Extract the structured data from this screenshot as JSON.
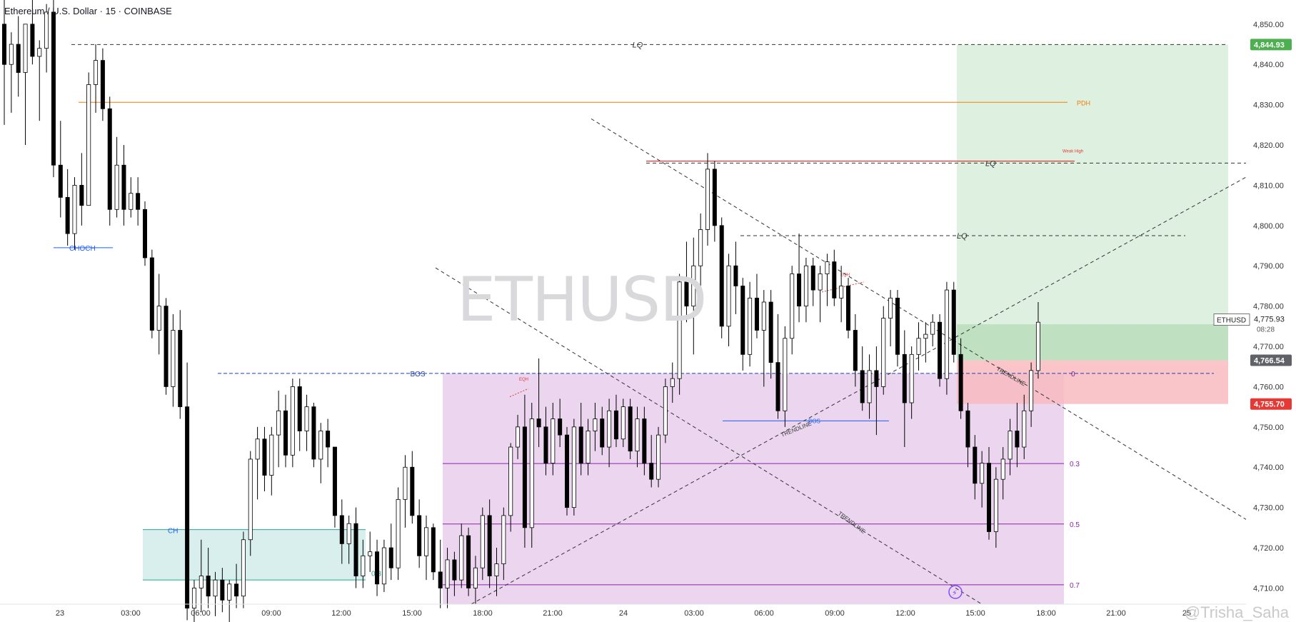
{
  "header": {
    "title": "Ethereum / U.S. Dollar · 15 · COINBASE"
  },
  "watermark": "ETHUSD",
  "credit": "@Trisha_Saha",
  "colors": {
    "up": "#ffffff",
    "down": "#000000",
    "wick": "#000000",
    "tp_zone": "#c8e6c9",
    "sl_zone": "#f8bbc0",
    "fib_zone": "#e1bee7",
    "ch_zone": "#b2dfdb",
    "pdh": "#f57c00",
    "weak_high": "#e53935",
    "bos": "#1e40af",
    "price_green": "#4caf50",
    "price_gray": "#5f6368",
    "price_red": "#e53935"
  },
  "chart_data": {
    "type": "candlestick",
    "symbol": "ETHUSD",
    "interval": "15",
    "exchange": "COINBASE",
    "ylim": [
      4706,
      4856
    ],
    "yticks": [
      4710,
      4720,
      4730,
      4740,
      4750,
      4760,
      4770,
      4780,
      4790,
      4800,
      4810,
      4820,
      4830,
      4840,
      4850
    ],
    "ytick_labels": [
      "4,710.00",
      "4,720.00",
      "4,730.00",
      "4,740.00",
      "4,750.00",
      "4,760.00",
      "4,770.00",
      "4,780.00",
      "4,790.00",
      "4,800.00",
      "4,810.00",
      "4,820.00",
      "4,830.00",
      "4,840.00",
      "4,850.00"
    ],
    "xtick_labels": [
      "23",
      "03:00",
      "06:00",
      "09:00",
      "12:00",
      "15:00",
      "18:00",
      "21:00",
      "24",
      "03:00",
      "06:00",
      "09:00",
      "12:00",
      "15:00",
      "18:00",
      "21:00",
      "25"
    ],
    "candles": [
      [
        4850,
        4856,
        4825,
        4840
      ],
      [
        4840,
        4848,
        4828,
        4845
      ],
      [
        4845,
        4852,
        4832,
        4838
      ],
      [
        4838,
        4850,
        4820,
        4850
      ],
      [
        4850,
        4856,
        4840,
        4842
      ],
      [
        4842,
        4846,
        4826,
        4844
      ],
      [
        4844,
        4855,
        4838,
        4853
      ],
      [
        4853,
        4856,
        4812,
        4815
      ],
      [
        4815,
        4826,
        4802,
        4807
      ],
      [
        4807,
        4814,
        4795,
        4798
      ],
      [
        4798,
        4812,
        4794,
        4810
      ],
      [
        4810,
        4818,
        4800,
        4805
      ],
      [
        4805,
        4838,
        4805,
        4835
      ],
      [
        4835,
        4845,
        4828,
        4841
      ],
      [
        4841,
        4844,
        4826,
        4829
      ],
      [
        4829,
        4832,
        4800,
        4804
      ],
      [
        4804,
        4822,
        4802,
        4815
      ],
      [
        4815,
        4820,
        4800,
        4804
      ],
      [
        4804,
        4812,
        4802,
        4808
      ],
      [
        4808,
        4812,
        4800,
        4804
      ],
      [
        4804,
        4806,
        4790,
        4792
      ],
      [
        4792,
        4794,
        4772,
        4774
      ],
      [
        4774,
        4788,
        4768,
        4780
      ],
      [
        4780,
        4782,
        4758,
        4760
      ],
      [
        4760,
        4778,
        4755,
        4774
      ],
      [
        4774,
        4779,
        4752,
        4755
      ],
      [
        4755,
        4766,
        4702,
        4705
      ],
      [
        4705,
        4712,
        4700,
        4710
      ],
      [
        4710,
        4722,
        4704,
        4713
      ],
      [
        4713,
        4720,
        4705,
        4708
      ],
      [
        4708,
        4714,
        4703,
        4712
      ],
      [
        4712,
        4715,
        4704,
        4707
      ],
      [
        4707,
        4712,
        4700,
        4711
      ],
      [
        4711,
        4716,
        4705,
        4708
      ],
      [
        4708,
        4724,
        4705,
        4722
      ],
      [
        4722,
        4744,
        4718,
        4742
      ],
      [
        4742,
        4750,
        4732,
        4747
      ],
      [
        4747,
        4750,
        4734,
        4738
      ],
      [
        4738,
        4750,
        4733,
        4748
      ],
      [
        4748,
        4759,
        4740,
        4754
      ],
      [
        4754,
        4758,
        4740,
        4743
      ],
      [
        4743,
        4762,
        4740,
        4760
      ],
      [
        4760,
        4762,
        4744,
        4749
      ],
      [
        4749,
        4758,
        4744,
        4755
      ],
      [
        4755,
        4756,
        4740,
        4742
      ],
      [
        4742,
        4751,
        4736,
        4749
      ],
      [
        4749,
        4752,
        4740,
        4745
      ],
      [
        4745,
        4745,
        4725,
        4728
      ],
      [
        4728,
        4732,
        4716,
        4721
      ],
      [
        4721,
        4728,
        4716,
        4726
      ],
      [
        4726,
        4730,
        4710,
        4713
      ],
      [
        4713,
        4722,
        4710,
        4718
      ],
      [
        4718,
        4724,
        4714,
        4719
      ],
      [
        4719,
        4722,
        4708,
        4711
      ],
      [
        4711,
        4722,
        4709,
        4720
      ],
      [
        4720,
        4726,
        4712,
        4715
      ],
      [
        4715,
        4735,
        4712,
        4732
      ],
      [
        4732,
        4743,
        4725,
        4740
      ],
      [
        4740,
        4744,
        4726,
        4728
      ],
      [
        4728,
        4732,
        4715,
        4718
      ],
      [
        4718,
        4728,
        4712,
        4725
      ],
      [
        4725,
        4726,
        4712,
        4714
      ],
      [
        4714,
        4722,
        4705,
        4710
      ],
      [
        4710,
        4720,
        4705,
        4717
      ],
      [
        4717,
        4719,
        4708,
        4712
      ],
      [
        4712,
        4726,
        4710,
        4723
      ],
      [
        4723,
        4725,
        4708,
        4710
      ],
      [
        4710,
        4718,
        4706,
        4715
      ],
      [
        4715,
        4730,
        4712,
        4728
      ],
      [
        4728,
        4732,
        4710,
        4713
      ],
      [
        4713,
        4720,
        4708,
        4716
      ],
      [
        4716,
        4730,
        4712,
        4728
      ],
      [
        4728,
        4746,
        4724,
        4745
      ],
      [
        4745,
        4753,
        4742,
        4750
      ],
      [
        4750,
        4758,
        4720,
        4725
      ],
      [
        4725,
        4756,
        4720,
        4752
      ],
      [
        4752,
        4767,
        4745,
        4750
      ],
      [
        4750,
        4755,
        4738,
        4741
      ],
      [
        4741,
        4756,
        4738,
        4752
      ],
      [
        4752,
        4757,
        4745,
        4748
      ],
      [
        4748,
        4750,
        4728,
        4730
      ],
      [
        4730,
        4752,
        4728,
        4750
      ],
      [
        4750,
        4756,
        4738,
        4741
      ],
      [
        4741,
        4752,
        4738,
        4749
      ],
      [
        4749,
        4756,
        4744,
        4752
      ],
      [
        4752,
        4755,
        4743,
        4745
      ],
      [
        4745,
        4757,
        4740,
        4754
      ],
      [
        4754,
        4758,
        4745,
        4747
      ],
      [
        4747,
        4757,
        4745,
        4755
      ],
      [
        4755,
        4757,
        4742,
        4744
      ],
      [
        4744,
        4755,
        4740,
        4752
      ],
      [
        4752,
        4755,
        4738,
        4741
      ],
      [
        4741,
        4748,
        4735,
        4737
      ],
      [
        4737,
        4750,
        4735,
        4748
      ],
      [
        4748,
        4762,
        4746,
        4760
      ],
      [
        4760,
        4766,
        4756,
        4762
      ],
      [
        4762,
        4788,
        4758,
        4786
      ],
      [
        4786,
        4796,
        4776,
        4780
      ],
      [
        4780,
        4797,
        4768,
        4790
      ],
      [
        4790,
        4803,
        4784,
        4799
      ],
      [
        4799,
        4818,
        4795,
        4814
      ],
      [
        4814,
        4816,
        4796,
        4800
      ],
      [
        4800,
        4802,
        4772,
        4775
      ],
      [
        4775,
        4793,
        4770,
        4790
      ],
      [
        4790,
        4796,
        4778,
        4785
      ],
      [
        4785,
        4787,
        4764,
        4768
      ],
      [
        4768,
        4786,
        4765,
        4782
      ],
      [
        4782,
        4788,
        4772,
        4774
      ],
      [
        4774,
        4784,
        4760,
        4781
      ],
      [
        4781,
        4784,
        4762,
        4766
      ],
      [
        4766,
        4778,
        4752,
        4754
      ],
      [
        4754,
        4775,
        4750,
        4772
      ],
      [
        4772,
        4790,
        4768,
        4788
      ],
      [
        4788,
        4798,
        4776,
        4780
      ],
      [
        4780,
        4792,
        4776,
        4790
      ],
      [
        4790,
        4792,
        4780,
        4784
      ],
      [
        4784,
        4790,
        4776,
        4788
      ],
      [
        4788,
        4793,
        4780,
        4791
      ],
      [
        4791,
        4794,
        4780,
        4782
      ],
      [
        4782,
        4790,
        4776,
        4785
      ],
      [
        4785,
        4787,
        4772,
        4774
      ],
      [
        4774,
        4778,
        4760,
        4764
      ],
      [
        4764,
        4770,
        4754,
        4756
      ],
      [
        4756,
        4768,
        4752,
        4764
      ],
      [
        4764,
        4770,
        4748,
        4760
      ],
      [
        4760,
        4780,
        4758,
        4777
      ],
      [
        4777,
        4784,
        4770,
        4782
      ],
      [
        4782,
        4784,
        4765,
        4768
      ],
      [
        4768,
        4774,
        4745,
        4756
      ],
      [
        4756,
        4770,
        4752,
        4768
      ],
      [
        4768,
        4776,
        4764,
        4772
      ],
      [
        4772,
        4776,
        4766,
        4773
      ],
      [
        4773,
        4778,
        4770,
        4776
      ],
      [
        4776,
        4778,
        4760,
        4762
      ],
      [
        4762,
        4786,
        4758,
        4784
      ],
      [
        4784,
        4786,
        4766,
        4768
      ],
      [
        4768,
        4772,
        4752,
        4754
      ],
      [
        4754,
        4756,
        4740,
        4745
      ],
      [
        4745,
        4748,
        4732,
        4736
      ],
      [
        4736,
        4744,
        4730,
        4741
      ],
      [
        4741,
        4745,
        4722,
        4724
      ],
      [
        4724,
        4740,
        4720,
        4737
      ],
      [
        4737,
        4745,
        4732,
        4742
      ],
      [
        4742,
        4752,
        4738,
        4749
      ],
      [
        4749,
        4756,
        4740,
        4745
      ],
      [
        4745,
        4758,
        4742,
        4754
      ],
      [
        4754,
        4766,
        4750,
        4764
      ],
      [
        4764,
        4781,
        4762,
        4776
      ]
    ],
    "levels": [
      {
        "label": "LQ",
        "value": 4844.93
      },
      {
        "label": "PDH",
        "value": 4830.6
      },
      {
        "label": "Weak High",
        "value": 4816
      },
      {
        "label": "LQ",
        "value": 4815.5
      },
      {
        "label": "LQ",
        "value": 4797.5
      },
      {
        "label": "BOS",
        "value": 4763.3
      },
      {
        "label": "0",
        "value": 4763.3
      },
      {
        "label": "0.3",
        "value": 4740.9
      },
      {
        "label": "0.5",
        "value": 4725.9
      },
      {
        "label": "0.7",
        "value": 4710.8
      },
      {
        "label": "CHOCH",
        "value": 4794.5
      },
      {
        "label": "CH",
        "value": 4724.5
      }
    ],
    "trendline_labels": [
      "TRENDLINE",
      "TRENDLINE",
      "TRENDLINE"
    ],
    "eqh_labels": [
      "EQH",
      "EQH"
    ],
    "bos_label_2": "BOS",
    "fib_zone_label": "0.3",
    "ch_zone_label": "0.3",
    "position": {
      "take_profit": 4844.93,
      "entry": 4766.54,
      "stop_loss": 4755.7
    },
    "price_tags": [
      {
        "value": "4,844.93",
        "kind": "green"
      },
      {
        "value": "4,766.54",
        "kind": "gray"
      },
      {
        "value": "4,755.70",
        "kind": "red"
      }
    ],
    "last_price": {
      "symbol": "ETHUSD",
      "value": "4,775.93",
      "countdown": "08:28"
    }
  }
}
